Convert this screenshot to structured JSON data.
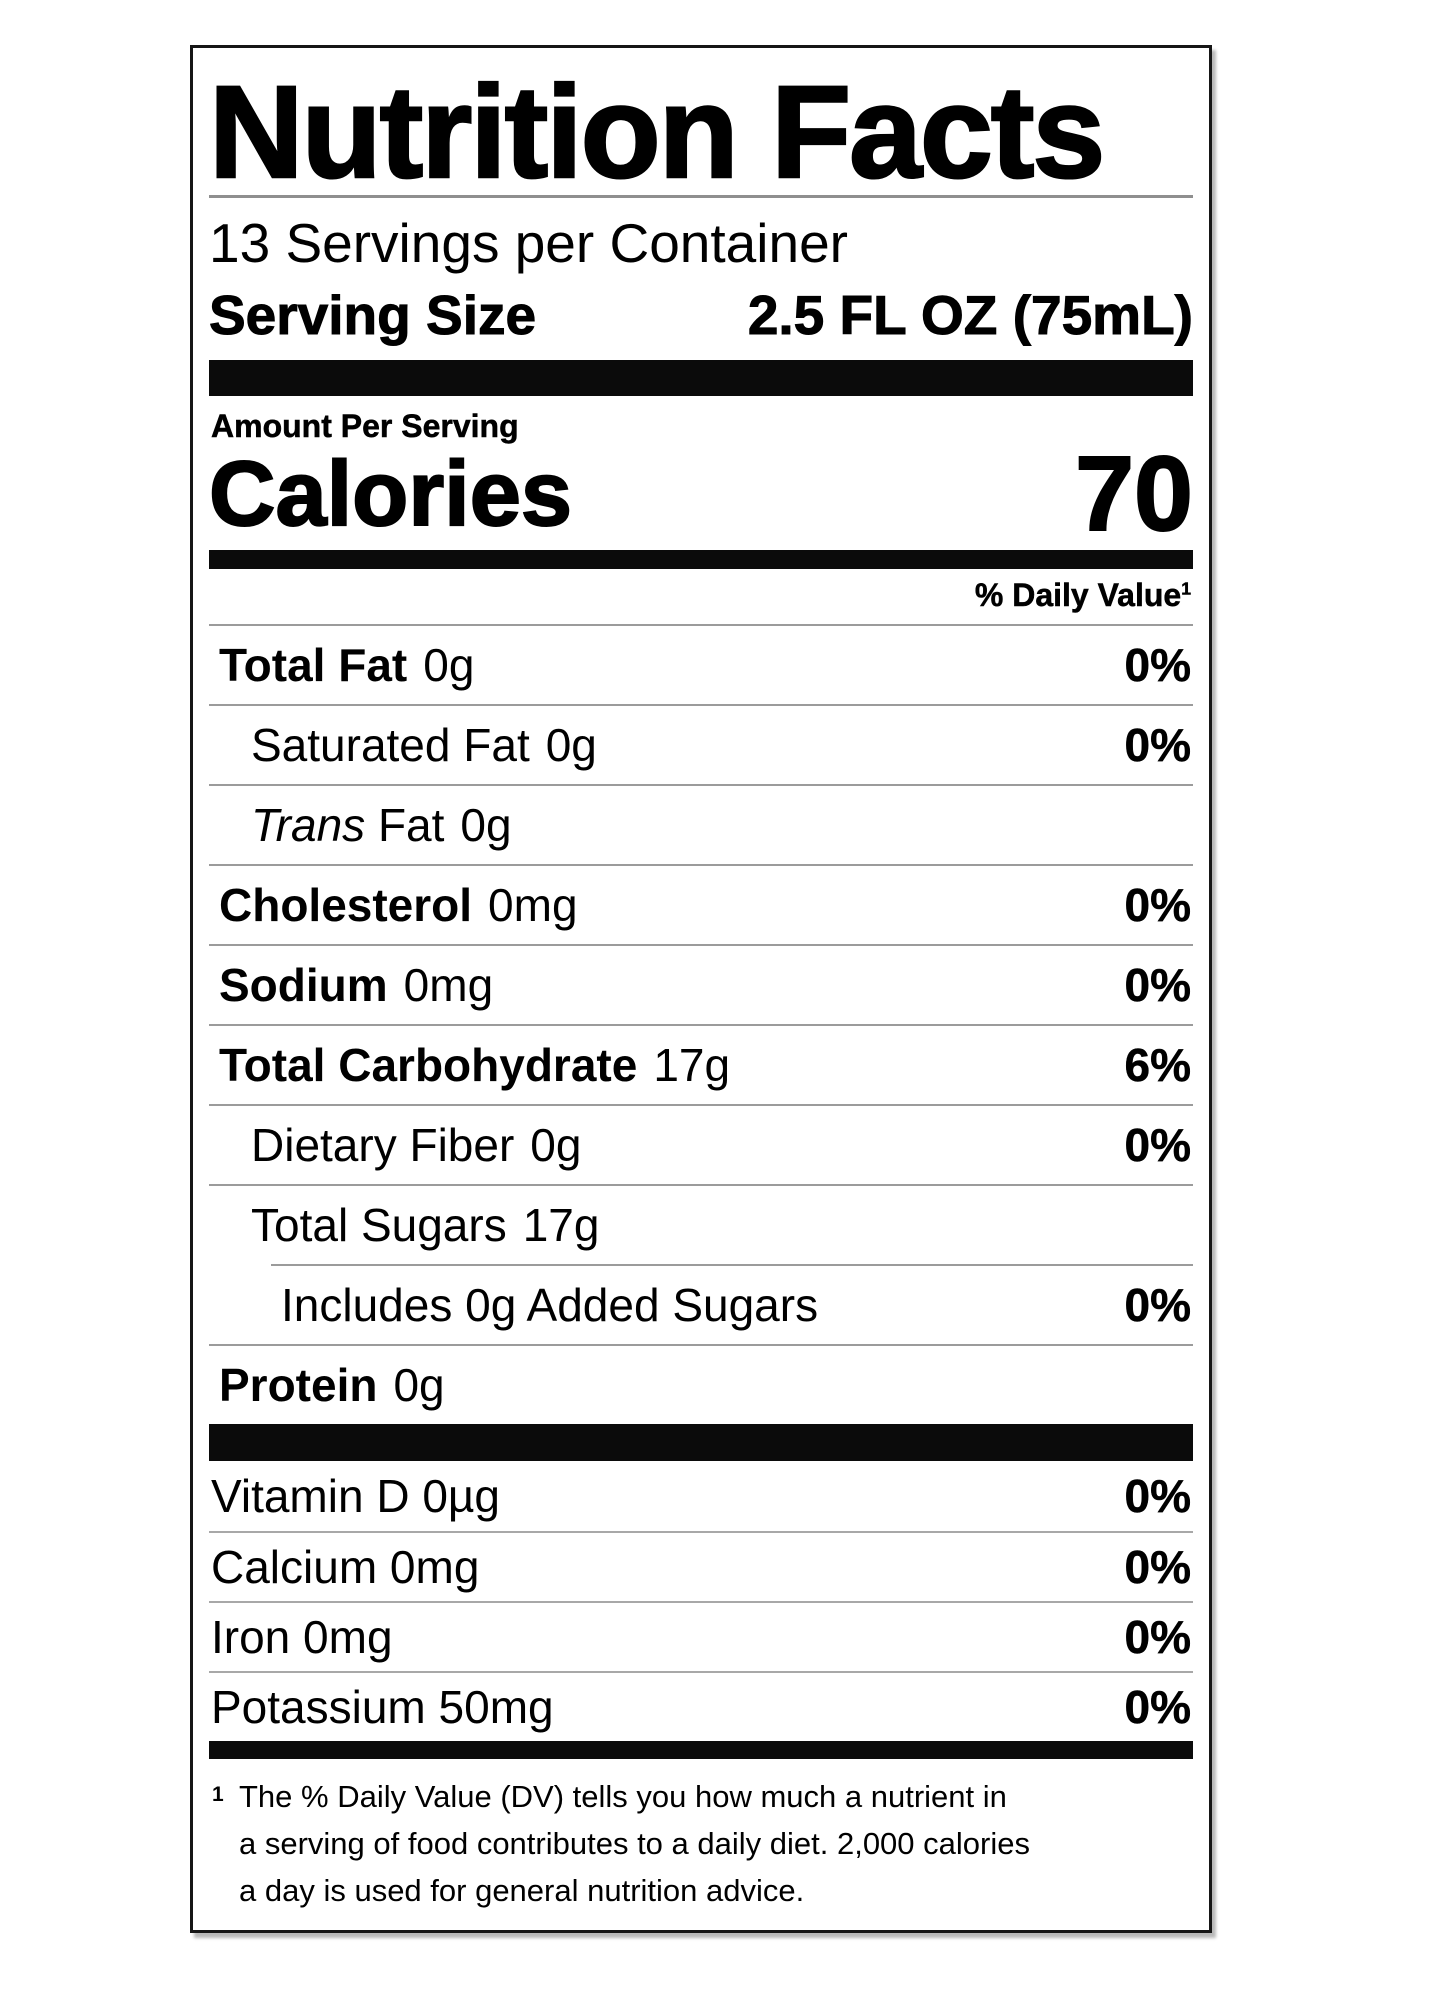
{
  "label": {
    "title": "Nutrition Facts",
    "servings_per_container": "13 Servings per Container",
    "serving_size_label": "Serving Size",
    "serving_size_value": "2.5 FL OZ (75mL)",
    "amount_per_serving": "Amount Per Serving",
    "calories_label": "Calories",
    "calories_value": "70",
    "daily_value_header": "% Daily Value",
    "footnote_marker": "1",
    "nutrients": [
      {
        "name": "Total Fat",
        "amount": "0g",
        "dv": "0%"
      },
      {
        "name": "Saturated Fat",
        "amount": "0g",
        "dv": ""
      },
      {
        "name_italic": "Trans",
        "name": " Fat",
        "amount": "0g",
        "dv": ""
      },
      {
        "name": "Cholesterol",
        "amount": "0mg",
        "dv": "0%"
      },
      {
        "name": "Sodium",
        "amount": "0mg",
        "dv": "0%"
      },
      {
        "name": "Total Carbohydrate",
        "amount": "17g",
        "dv": "6%"
      },
      {
        "name": "Dietary Fiber",
        "amount": "0g",
        "dv": "0%"
      },
      {
        "name": "Total Sugars",
        "amount": "17g",
        "dv": ""
      },
      {
        "name": "Includes 0g Added Sugars",
        "amount": "",
        "dv": "0%"
      },
      {
        "name": "Protein",
        "amount": "0g",
        "dv": ""
      }
    ],
    "nutrients_dv_fix": {
      "saturated_fat_dv": "0%"
    },
    "micronutrients": [
      {
        "name": "Vitamin D 0µg",
        "dv": "0%"
      },
      {
        "name": "Calcium 0mg",
        "dv": "0%"
      },
      {
        "name": "Iron 0mg",
        "dv": "0%"
      },
      {
        "name": "Potassium 50mg",
        "dv": "0%"
      }
    ],
    "footnote_lines": [
      "The % Daily Value (DV) tells you how much a nutrient in",
      "a serving of food contributes to a daily diet. 2,000 calories",
      "a day is used for general nutrition advice."
    ]
  }
}
